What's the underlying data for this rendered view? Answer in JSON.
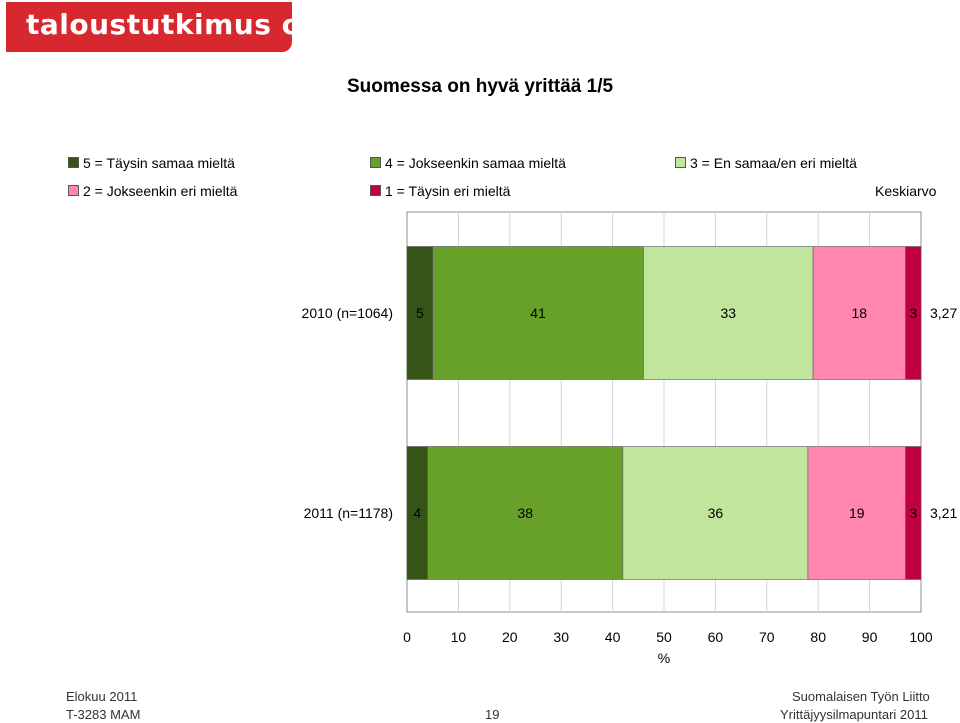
{
  "brand": {
    "logo_text": "taloustutkimus oy"
  },
  "chart_data": {
    "type": "bar",
    "orientation": "horizontal",
    "stacked": true,
    "title": "Suomessa on hyvä yrittää 1/5",
    "xlabel": "%",
    "xlim": [
      0,
      100
    ],
    "xticks": [
      "0",
      "10",
      "20",
      "30",
      "40",
      "50",
      "60",
      "70",
      "80",
      "90",
      "100"
    ],
    "grid": true,
    "legend_position": "top",
    "categories": [
      "2010 (n=1064)",
      "2011 (n=1178)"
    ],
    "series": [
      {
        "name": "5 = Täysin samaa mieltä",
        "color": "#375418",
        "values": [
          5,
          4
        ]
      },
      {
        "name": "4 = Jokseenkin samaa mieltä",
        "color": "#68a12a",
        "values": [
          41,
          38
        ]
      },
      {
        "name": "3 = En samaa/en eri mieltä",
        "color": "#c2e59e",
        "values": [
          33,
          36
        ]
      },
      {
        "name": "2 = Jokseenkin eri mieltä",
        "color": "#ff86b0",
        "values": [
          18,
          19
        ]
      },
      {
        "name": "1 = Täysin eri mieltä",
        "color": "#c00040",
        "values": [
          3,
          3
        ]
      }
    ],
    "mean_label": "Keskiarvo",
    "means": [
      "3,27",
      "3,21"
    ]
  },
  "footer": {
    "left_line1": "Elokuu 2011",
    "left_line2": "T-3283 MAM",
    "page_number": "19",
    "right_line1": "Suomalaisen Työn Liitto",
    "right_line2": "Yrittäjyysilmapuntari 2011"
  }
}
